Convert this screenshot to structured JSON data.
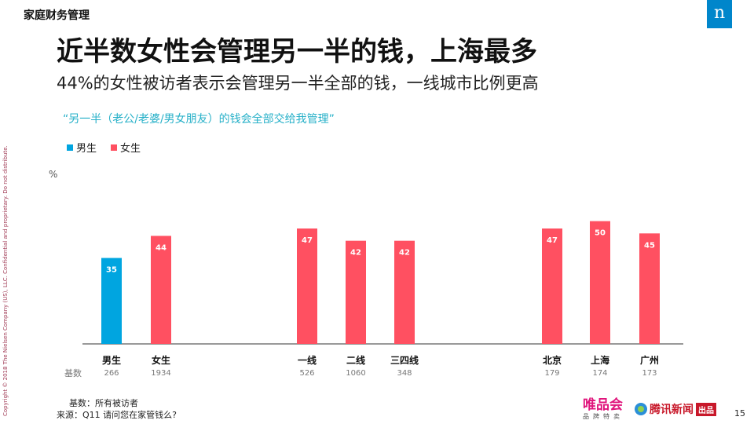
{
  "header": {
    "section_label": "家庭财务管理",
    "brand_logo_text": "n"
  },
  "title": "近半数女性会管理另一半的钱，上海最多",
  "subtitle": "44%的女性被访者表示会管理另一半全部的钱，一线城市比例更高",
  "question": "“另一半（老公/老婆/男女朋友）的钱会全部交给我管理”",
  "legend": [
    {
      "label": "男生",
      "color": "#00a5e0"
    },
    {
      "label": "女生",
      "color": "#ff5061"
    }
  ],
  "unit": "%",
  "base_label": "基数",
  "chart_data": {
    "type": "bar",
    "ylim": [
      0,
      55
    ],
    "legend_position": "top-left",
    "grid": false,
    "categories": [
      "男生",
      "女生",
      "一线",
      "二线",
      "三四线",
      "北京",
      "上海",
      "广州"
    ],
    "values": [
      35,
      44,
      47,
      42,
      42,
      47,
      50,
      45
    ],
    "series_of_bar": [
      "男生",
      "女生",
      "女生",
      "女生",
      "女生",
      "女生",
      "女生",
      "女生"
    ],
    "bases": [
      "266",
      "1934",
      "526",
      "1060",
      "348",
      "179",
      "174",
      "173"
    ]
  },
  "footnotes": {
    "base": "基数：所有被访者",
    "source": "来源：Q11 请问您在家管钱么?"
  },
  "copyright": "Copyright © 2018 The Nielsen Company (US), LLC. Confidential and proprietary. Do not distribute.",
  "partner": {
    "vip": "唯品会",
    "vip_sub": "品牌特卖",
    "tencent": "腾讯新闻",
    "tencent_tag": "出品"
  },
  "page_number": "15"
}
